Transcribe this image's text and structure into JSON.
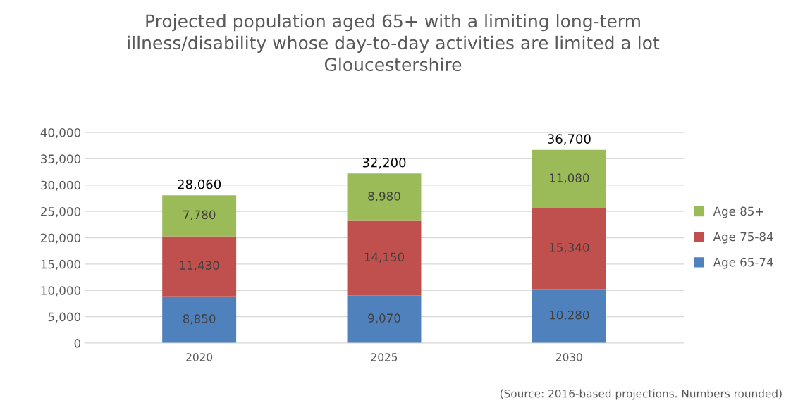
{
  "chart_data": {
    "type": "bar",
    "stacked": true,
    "title": "Projected population aged 65+ with a limiting long-term\nillness/disability whose day-to-day activities are limited a lot\nGloucestershire",
    "categories": [
      "2020",
      "2025",
      "2030"
    ],
    "series": [
      {
        "name": "Age 65-74",
        "color": "#4f81bd",
        "values": [
          8850,
          9070,
          10280
        ],
        "value_labels": [
          "8,850",
          "9,070",
          "10,280"
        ]
      },
      {
        "name": "Age 75-84",
        "color": "#c0504d",
        "values": [
          11430,
          14150,
          15340
        ],
        "value_labels": [
          "11,430",
          "14,150",
          "15,340"
        ]
      },
      {
        "name": "Age 85+",
        "color": "#9bbb59",
        "values": [
          7780,
          8980,
          11080
        ],
        "value_labels": [
          "7,780",
          "8,980",
          "11,080"
        ]
      }
    ],
    "totals": [
      "28,060",
      "32,200",
      "36,700"
    ],
    "ylim": [
      0,
      40000
    ],
    "yticks": [
      {
        "value": 0,
        "label": "0"
      },
      {
        "value": 5000,
        "label": "5,000"
      },
      {
        "value": 10000,
        "label": "10,000"
      },
      {
        "value": 15000,
        "label": "15,000"
      },
      {
        "value": 20000,
        "label": "20,000"
      },
      {
        "value": 25000,
        "label": "25,000"
      },
      {
        "value": 30000,
        "label": "30,000"
      },
      {
        "value": 35000,
        "label": "35,000"
      },
      {
        "value": 40000,
        "label": "40,000"
      }
    ],
    "grid": "y",
    "legend": "right",
    "annotations": [
      "(Source: 2016-based projections. Numbers rounded)"
    ]
  }
}
